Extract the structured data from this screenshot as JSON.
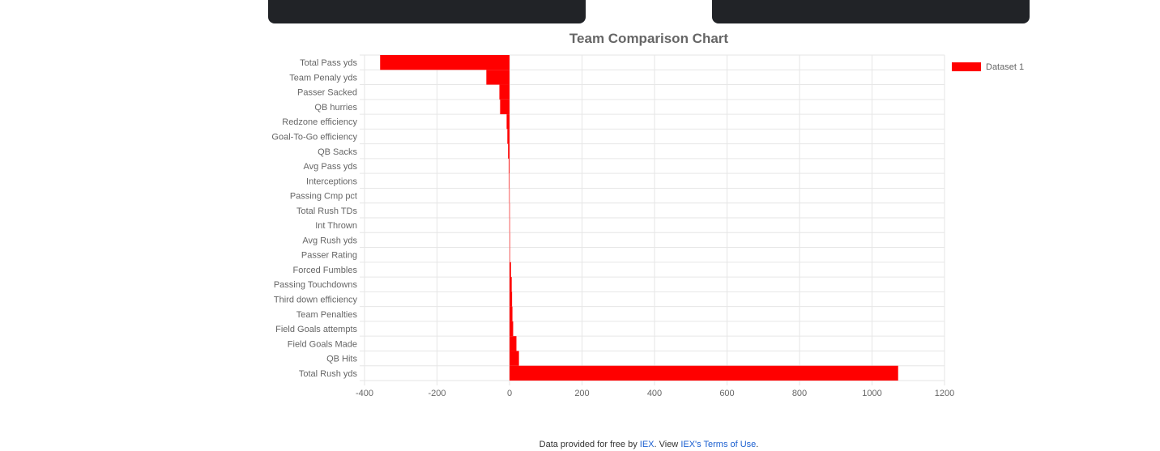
{
  "chart_data": {
    "type": "bar",
    "orientation": "horizontal",
    "title": "Team Comparison Chart",
    "categories": [
      "Total Pass yds",
      "Team Penaly yds",
      "Passer Sacked",
      "QB hurries",
      "Redzone efficiency",
      "Goal-To-Go efficiency",
      "QB Sacks",
      "Avg Pass yds",
      "Interceptions",
      "Passing Cmp pct",
      "Total Rush TDs",
      "Int Thrown",
      "Avg Rush yds",
      "Passer Rating",
      "Forced Fumbles",
      "Passing Touchdowns",
      "Third down efficiency",
      "Team Penalties",
      "Field Goals attempts",
      "Field Goals Made",
      "QB Hits",
      "Total Rush yds"
    ],
    "series": [
      {
        "name": "Dataset 1",
        "values": [
          -357,
          -64,
          -28,
          -26,
          -8,
          -6,
          -4,
          -2,
          -1.5,
          -1,
          -0.5,
          -0.3,
          0.3,
          0.5,
          4,
          6,
          7,
          8,
          10,
          19,
          26,
          1072
        ]
      }
    ],
    "xlim": [
      -400,
      1200
    ],
    "xticks": [
      -400,
      -200,
      0,
      200,
      400,
      600,
      800,
      1000,
      1200
    ],
    "grid": true,
    "legend_position": "right",
    "colors": {
      "bar": "#ff0000",
      "grid": "#e6e6e6",
      "axis_text": "#666666",
      "title": "#666666"
    }
  },
  "footer": {
    "prefix": "Data provided for free by ",
    "link1": "IEX",
    "middle": ". View ",
    "link2": "IEX's Terms of Use",
    "suffix": "."
  }
}
